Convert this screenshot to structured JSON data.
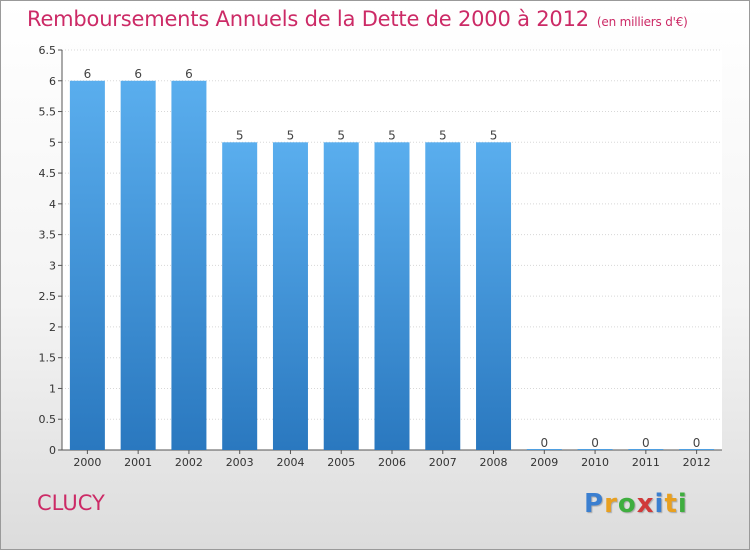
{
  "chart_data": {
    "type": "bar",
    "title": "Remboursements Annuels de la Dette de 2000 à 2012",
    "unit": "(en milliers d'€)",
    "categories": [
      "2000",
      "2001",
      "2002",
      "2003",
      "2004",
      "2005",
      "2006",
      "2007",
      "2008",
      "2009",
      "2010",
      "2011",
      "2012"
    ],
    "values": [
      6,
      6,
      6,
      5,
      5,
      5,
      5,
      5,
      5,
      0,
      0,
      0,
      0
    ],
    "data_labels": [
      "6",
      "6",
      "6",
      "5",
      "5",
      "5",
      "5",
      "5",
      "5",
      "0",
      "0",
      "0",
      "0"
    ],
    "ylim": [
      0,
      6.5
    ],
    "y_ticks": [
      "0",
      "0.5",
      "1",
      "1.5",
      "2",
      "2.5",
      "3",
      "3.5",
      "4",
      "4.5",
      "5",
      "5.5",
      "6",
      "6.5"
    ],
    "grid": true,
    "bar_color": "#4f9fe0"
  },
  "footer": {
    "commune": "CLUCY",
    "logo_letters": [
      "P",
      "r",
      "o",
      "x",
      "i",
      "t",
      "i"
    ],
    "logo_colors": [
      "#3b7fd0",
      "#e8a020",
      "#3fae3f",
      "#d03a3a",
      "#3b7fd0",
      "#e8a020",
      "#3fae3f"
    ]
  }
}
